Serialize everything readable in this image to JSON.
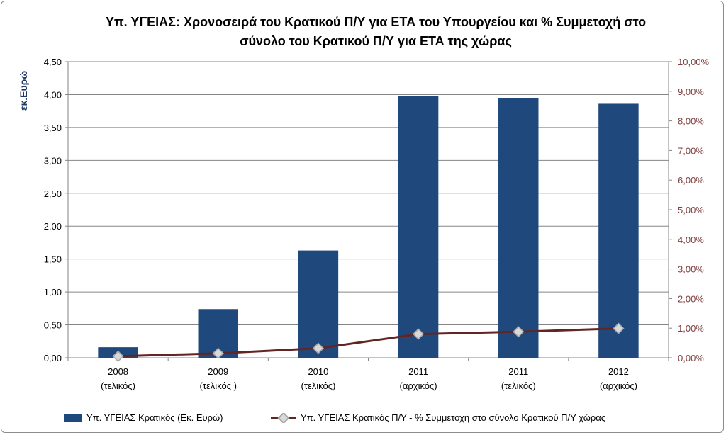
{
  "chart_data": {
    "type": "bar",
    "title_line1": "Υπ. ΥΓΕΙΑΣ: Χρονοσειρά του Κρατικού Π/Υ για ΕΤΑ του Υπουργείου και % Συμμετοχή  στο",
    "title_line2": "σύνολο του Κρατικού Π/Υ για ΕΤΑ της χώρας",
    "ylabel": "εκ.Ευρώ",
    "categories": [
      [
        "2008",
        "(τελικός)"
      ],
      [
        "2009",
        "(τελικός )"
      ],
      [
        "2010",
        "(τελικός)"
      ],
      [
        "2011",
        "(αρχικός)"
      ],
      [
        "2011",
        "(τελικός)"
      ],
      [
        "2012",
        "(αρχικός)"
      ]
    ],
    "series": [
      {
        "name": "Υπ. ΥΓΕΙΑΣ Κρατικός (Εκ. Ευρώ)",
        "type": "bar",
        "axis": "left",
        "color": "#1f497d",
        "values": [
          0.16,
          0.74,
          1.63,
          3.98,
          3.95,
          3.86
        ]
      },
      {
        "name": "Υπ. ΥΓΕΙΑΣ Κρατικός Π/Υ - % Συμμετοχή στο σύνολο Κρατικού Π/Υ χώρας",
        "type": "line",
        "axis": "right",
        "color": "#632523",
        "marker_fill": "#d9d9d9",
        "values": [
          0.0005,
          0.0015,
          0.0032,
          0.008,
          0.0088,
          0.0099
        ]
      }
    ],
    "left_axis": {
      "ylim": [
        0,
        4.5
      ],
      "ticks": [
        "0,00",
        "0,50",
        "1,00",
        "1,50",
        "2,00",
        "2,50",
        "3,00",
        "3,50",
        "4,00",
        "4,50"
      ]
    },
    "right_axis": {
      "ylim": [
        0,
        0.1
      ],
      "color": "#7f3f3f",
      "ticks": [
        "0,00%",
        "1,00%",
        "2,00%",
        "3,00%",
        "4,00%",
        "5,00%",
        "6,00%",
        "7,00%",
        "8,00%",
        "9,00%",
        "10,00%"
      ]
    },
    "grid": true,
    "legend_position": "bottom"
  }
}
